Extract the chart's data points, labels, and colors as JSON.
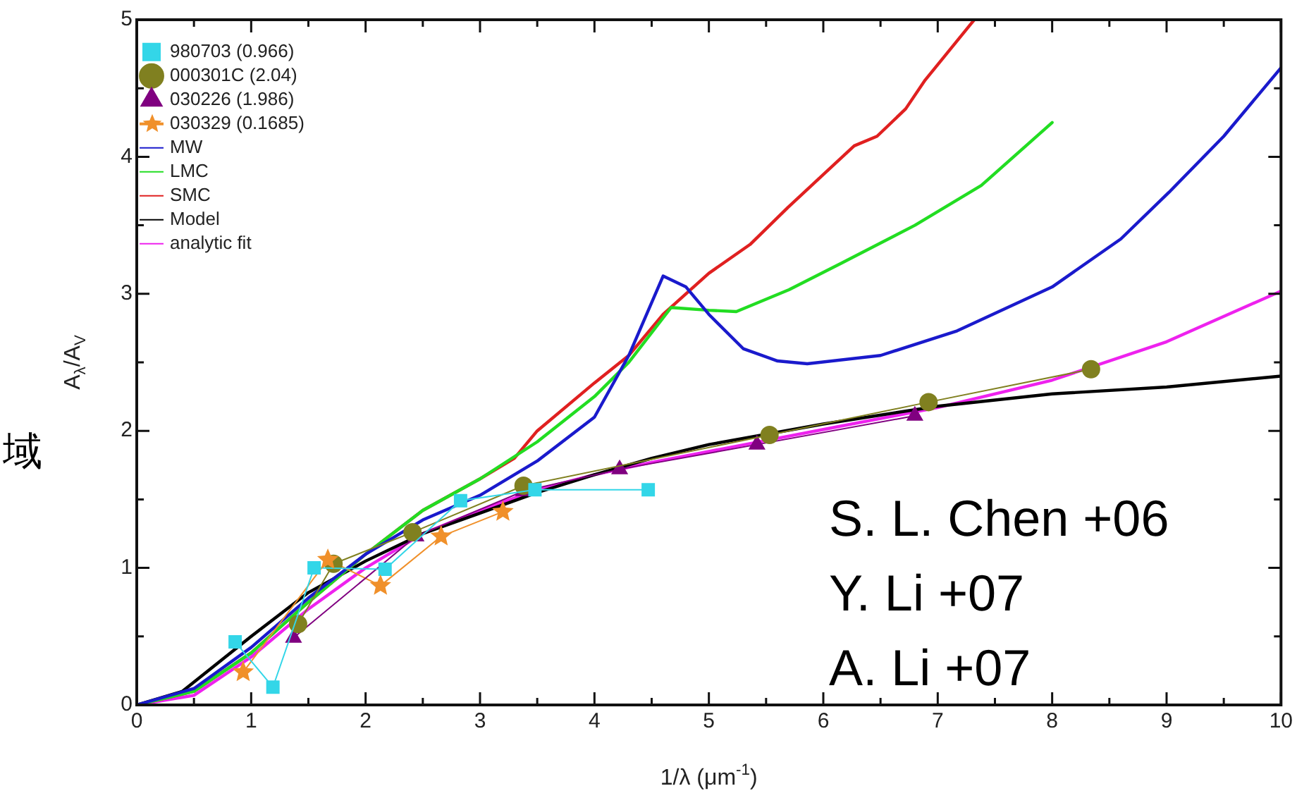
{
  "chart_data": {
    "type": "line",
    "xlabel": "1/λ (μm$^{-1}$)",
    "ylabel": "A$_{λ}$/A$_{V}$",
    "xlim": [
      0,
      10
    ],
    "ylim": [
      0,
      5
    ],
    "xticks": [
      0,
      {
        "value": 0.5,
        "label": null
      },
      1,
      {
        "value": 1.5,
        "label": null
      },
      2,
      {
        "value": 2.5,
        "label": null
      },
      3,
      {
        "value": 3.5,
        "label": null
      },
      4,
      {
        "value": 4.5,
        "label": null
      },
      5,
      {
        "value": 5.5,
        "label": null
      },
      6,
      {
        "value": 6.5,
        "label": null
      },
      7,
      {
        "value": 7.5,
        "label": null
      },
      8,
      {
        "value": 8.5,
        "label": null
      },
      9,
      {
        "value": 9.5,
        "label": null
      },
      10
    ],
    "yticks": [
      0,
      {
        "value": 0.5,
        "label": null
      },
      1,
      {
        "value": 1.5,
        "label": null
      },
      2,
      {
        "value": 2.5,
        "label": null
      },
      3,
      {
        "value": 3.5,
        "label": null
      },
      4,
      {
        "value": 4.5,
        "label": null
      },
      5
    ],
    "grid": false,
    "legend": "top left",
    "annotations": [
      "S. L. Chen +06",
      "Y. Li +07",
      "A. Li +07",
      "域"
    ],
    "series": [
      {
        "name": "980703 (0.966)",
        "color": "#33d6e8",
        "marker": "square",
        "x": [
          0.86,
          1.19,
          1.55,
          2.17,
          2.83,
          3.48,
          4.47
        ],
        "values": [
          0.46,
          0.13,
          1.0,
          0.99,
          1.49,
          1.57,
          1.57
        ]
      },
      {
        "name": "000301C (2.04)",
        "color": "#808020",
        "marker": "circle",
        "x": [
          1.41,
          1.72,
          2.41,
          3.38,
          5.53,
          6.92,
          8.34
        ],
        "values": [
          0.59,
          1.03,
          1.26,
          1.6,
          1.97,
          2.21,
          2.45
        ]
      },
      {
        "name": "030226 (1.986)",
        "color": "#800080",
        "marker": "triangle",
        "x": [
          1.37,
          2.44,
          3.38,
          4.22,
          5.42,
          6.8
        ],
        "values": [
          0.49,
          1.23,
          1.56,
          1.72,
          1.9,
          2.11
        ]
      },
      {
        "name": "030329 (0.1685)",
        "color": "#f0902a",
        "marker": "star",
        "x": [
          0.93,
          1.67,
          2.13,
          2.66,
          3.2
        ],
        "values": [
          0.24,
          1.06,
          0.87,
          1.23,
          1.41
        ]
      },
      {
        "name": "MW",
        "color": "#1a1acc",
        "marker": "none",
        "x": [
          0,
          0.5,
          1,
          1.5,
          2,
          2.5,
          3,
          3.5,
          4,
          4.3,
          4.6,
          4.8,
          5,
          5.3,
          5.6,
          5.86,
          6.5,
          7.17,
          8,
          8.6,
          9.02,
          9.5,
          10
        ],
        "values": [
          0,
          0.12,
          0.42,
          0.78,
          1.1,
          1.35,
          1.53,
          1.78,
          2.1,
          2.55,
          3.13,
          3.05,
          2.85,
          2.6,
          2.51,
          2.49,
          2.55,
          2.73,
          3.05,
          3.4,
          3.74,
          4.15,
          4.65
        ]
      },
      {
        "name": "LMC",
        "color": "#22dd22",
        "marker": "none",
        "x": [
          0,
          0.5,
          1,
          1.5,
          2,
          2.5,
          3,
          3.5,
          4,
          4.3,
          4.67,
          5.0,
          5.24,
          5.7,
          6.15,
          6.8,
          7.38,
          8.0
        ],
        "values": [
          0,
          0.1,
          0.38,
          0.75,
          1.1,
          1.42,
          1.65,
          1.92,
          2.25,
          2.5,
          2.9,
          2.88,
          2.87,
          3.03,
          3.22,
          3.5,
          3.79,
          4.25
        ]
      },
      {
        "name": "SMC",
        "color": "#e02020",
        "marker": "none",
        "x": [
          0,
          0.5,
          1,
          1.5,
          2,
          2.5,
          3,
          3.3,
          3.5,
          4,
          4.3,
          4.6,
          5,
          5.36,
          5.69,
          6.27,
          6.47,
          6.72,
          6.89,
          7.29,
          7.32
        ],
        "values": [
          0,
          0.1,
          0.38,
          0.75,
          1.1,
          1.42,
          1.65,
          1.8,
          2.0,
          2.35,
          2.55,
          2.85,
          3.15,
          3.36,
          3.63,
          4.08,
          4.15,
          4.35,
          4.56,
          4.97,
          5.0
        ]
      },
      {
        "name": "Model",
        "color": "#000000",
        "marker": "none",
        "x": [
          0,
          0.4,
          1,
          1.5,
          2,
          2.5,
          3,
          3.5,
          4,
          4.5,
          5,
          6,
          7,
          8,
          9,
          10
        ],
        "values": [
          0,
          0.1,
          0.5,
          0.82,
          1.05,
          1.25,
          1.4,
          1.55,
          1.68,
          1.8,
          1.9,
          2.05,
          2.18,
          2.27,
          2.32,
          2.4
        ]
      },
      {
        "name": "analytic fit",
        "color": "#ee22ee",
        "marker": "none",
        "x": [
          0,
          0.5,
          1,
          1.5,
          2,
          2.5,
          3,
          3.5,
          4,
          4.5,
          5,
          5.5,
          6,
          7,
          8,
          9,
          10
        ],
        "values": [
          0,
          0.07,
          0.35,
          0.7,
          1.0,
          1.25,
          1.42,
          1.57,
          1.68,
          1.77,
          1.85,
          1.93,
          2.01,
          2.17,
          2.37,
          2.65,
          3.02
        ]
      }
    ]
  }
}
